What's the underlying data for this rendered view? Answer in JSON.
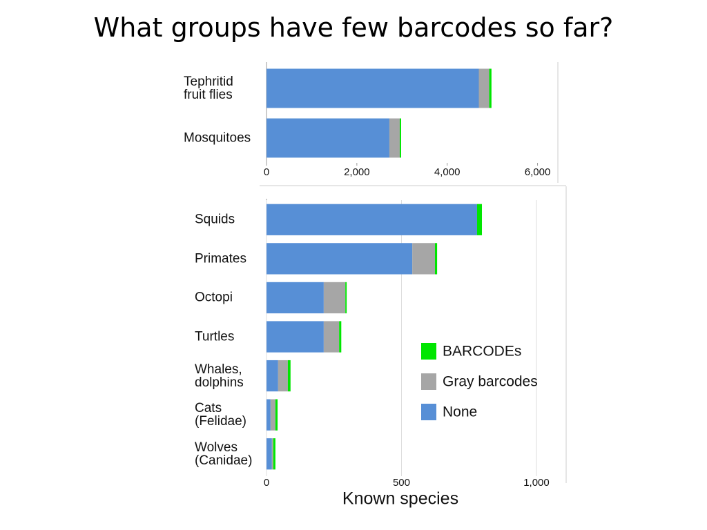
{
  "title": "What groups have few barcodes so far?",
  "chart_data": [
    {
      "type": "bar",
      "orientation": "horizontal",
      "stacked": true,
      "grid": false,
      "legend": false,
      "categories": [
        "Tephritid\nfruit flies",
        "Mosquitoes"
      ],
      "series": [
        {
          "name": "None",
          "color": "#578fd6",
          "values": [
            4700,
            2720
          ]
        },
        {
          "name": "Gray barcodes",
          "color": "#a6a6a6",
          "values": [
            230,
            230
          ]
        },
        {
          "name": "BARCODEs",
          "color": "#00e600",
          "values": [
            50,
            30
          ]
        }
      ],
      "xlim": [
        0,
        6450
      ],
      "xticks": [
        0,
        {
          "value": 2000,
          "label": "2,000"
        },
        {
          "value": 4000,
          "label": "4,000"
        },
        {
          "value": 6000,
          "label": "6,000"
        }
      ]
    },
    {
      "type": "bar",
      "orientation": "horizontal",
      "stacked": true,
      "grid": true,
      "legend": "right",
      "x_label": "Known species",
      "categories": [
        "Squids",
        "Primates",
        "Octopi",
        "Turtles",
        "Whales,\n dolphins",
        "Cats\n(Felidae)",
        "Wolves\n(Canidae)"
      ],
      "series": [
        {
          "name": "None",
          "color": "#578fd6",
          "values": [
            780,
            540,
            212,
            212,
            43,
            15,
            20
          ]
        },
        {
          "name": "Gray barcodes",
          "color": "#a6a6a6",
          "values": [
            0,
            84,
            80,
            57,
            36,
            18,
            5
          ]
        },
        {
          "name": "BARCODEs",
          "color": "#00e600",
          "values": [
            18,
            8,
            5,
            8,
            10,
            8,
            8
          ]
        }
      ],
      "xlim": [
        0,
        1110
      ],
      "xticks": [
        0,
        500,
        {
          "value": 1000,
          "label": "1,000"
        }
      ]
    }
  ]
}
